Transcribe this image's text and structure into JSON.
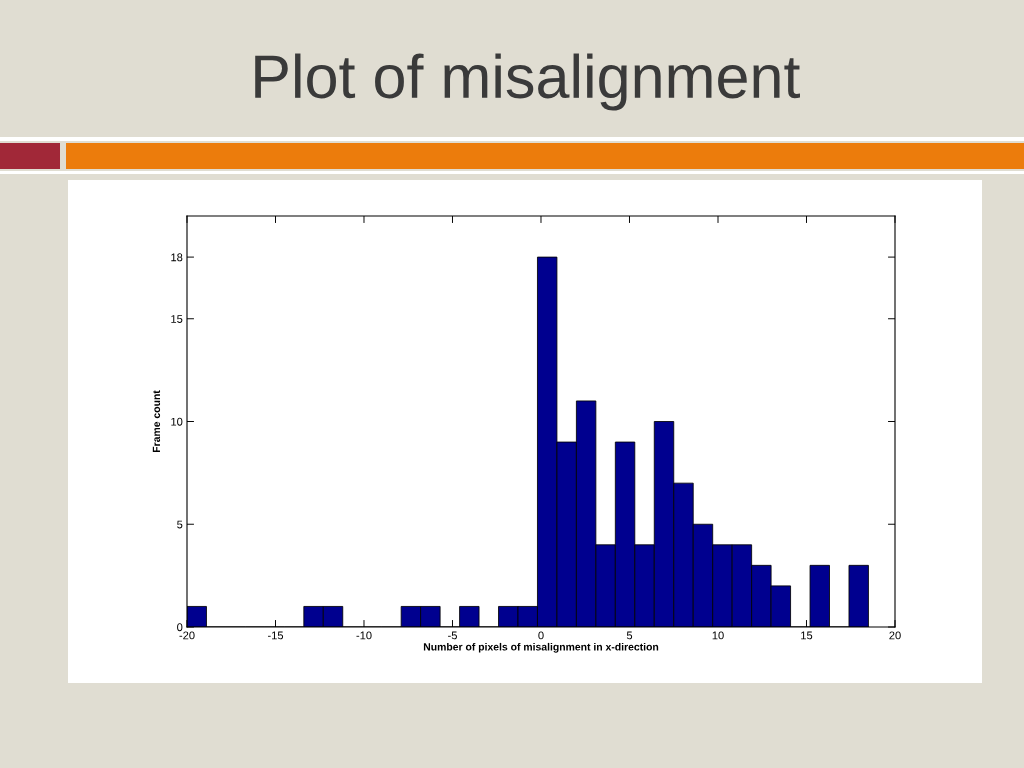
{
  "chart_data": {
    "type": "histogram",
    "title": "Plot of misalignment",
    "xlabel": "Number of pixels of misalignment in x-direction",
    "ylabel": "Frame count",
    "bins": [
      -20,
      -18.9,
      -17.8,
      -16.7,
      -15.6,
      -14.5,
      -13.4,
      -12.3,
      -11.2,
      -10.1,
      -9,
      -7.9,
      -6.8,
      -5.7,
      -4.6,
      -3.5,
      -2.4,
      -1.3,
      -0.2,
      0.9,
      2,
      3.1,
      4.2,
      5.3,
      6.4,
      7.5,
      8.6,
      9.7,
      10.8,
      11.9,
      13,
      14.1,
      15.2,
      16.3,
      17.4,
      18.5
    ],
    "values": [
      1,
      0,
      0,
      0,
      0,
      0,
      1,
      1,
      0,
      0,
      0,
      1,
      1,
      0,
      1,
      0,
      1,
      1,
      18,
      9,
      11,
      4,
      9,
      4,
      10,
      7,
      5,
      4,
      4,
      3,
      2,
      0,
      3,
      0,
      3
    ],
    "color": "#00008f",
    "xlim": [
      -20,
      20
    ],
    "xticks": [
      -20,
      -15,
      -10,
      -5,
      0,
      5,
      10,
      15,
      20
    ],
    "ylim": [
      0,
      20
    ],
    "yticks": [
      0,
      5,
      10,
      15,
      18
    ]
  }
}
